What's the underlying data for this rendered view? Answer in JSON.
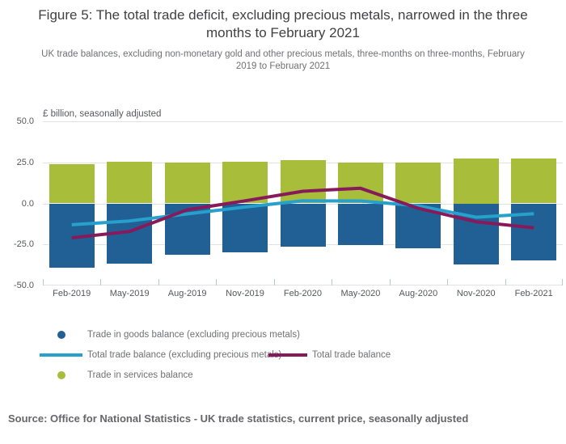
{
  "figure": {
    "title": "Figure 5: The total trade deficit, excluding precious metals, narrowed in the three months to February 2021",
    "subtitle": "UK trade balances, excluding non-monetary gold and other precious metals, three-months on three-months, February 2019 to February 2021",
    "source": "Source: Office for National Statistics - UK trade statistics, current price, seasonally adjusted"
  },
  "chart_data": {
    "type": "bar",
    "subtype": "stacked bars (positive/negative) with two overlaid line series",
    "unit_label": "£ billion, seasonally adjusted",
    "categories": [
      "Feb-2019",
      "May-2019",
      "Aug-2019",
      "Nov-2019",
      "Feb-2020",
      "May-2020",
      "Aug-2020",
      "Nov-2020",
      "Feb-2021"
    ],
    "series": [
      {
        "slug": "goods",
        "name": "Trade in goods balance (excluding precious metals)",
        "kind": "bar",
        "color": "#206095",
        "values": [
          -39.3,
          -36.8,
          -31.2,
          -29.6,
          -26.3,
          -25.1,
          -27.1,
          -37.3,
          -34.8
        ]
      },
      {
        "slug": "services",
        "name": "Trade in services balance",
        "kind": "bar",
        "color": "#A8BD3A",
        "values": [
          24.0,
          25.3,
          25.0,
          25.3,
          26.3,
          25.0,
          25.0,
          27.6,
          27.2
        ]
      },
      {
        "slug": "total-excl-pm",
        "name": "Total trade balance (excluding precious metals)",
        "kind": "line",
        "color": "#27A0CC",
        "values": [
          -13.0,
          -10.7,
          -6.4,
          -2.2,
          1.6,
          1.5,
          -1.5,
          -8.4,
          -6.3
        ]
      },
      {
        "slug": "total",
        "name": "Total trade balance",
        "kind": "line",
        "color": "#871A5B",
        "values": [
          -21.0,
          -17.1,
          -3.9,
          1.6,
          7.4,
          9.2,
          -3.0,
          -11.2,
          -14.9
        ]
      }
    ],
    "ylim": [
      -50,
      50
    ],
    "ytick_labels": [
      "50.0",
      "25.0",
      "0.0",
      "-25.0",
      "-50.0"
    ],
    "grid": "horizontal gridlines on",
    "legend_position": "bottom",
    "colors": {
      "gridline": "#e2e2e2",
      "axis_tick": "#b9c7d8",
      "title_text": "#414042",
      "muted_text": "#6f7072"
    }
  }
}
